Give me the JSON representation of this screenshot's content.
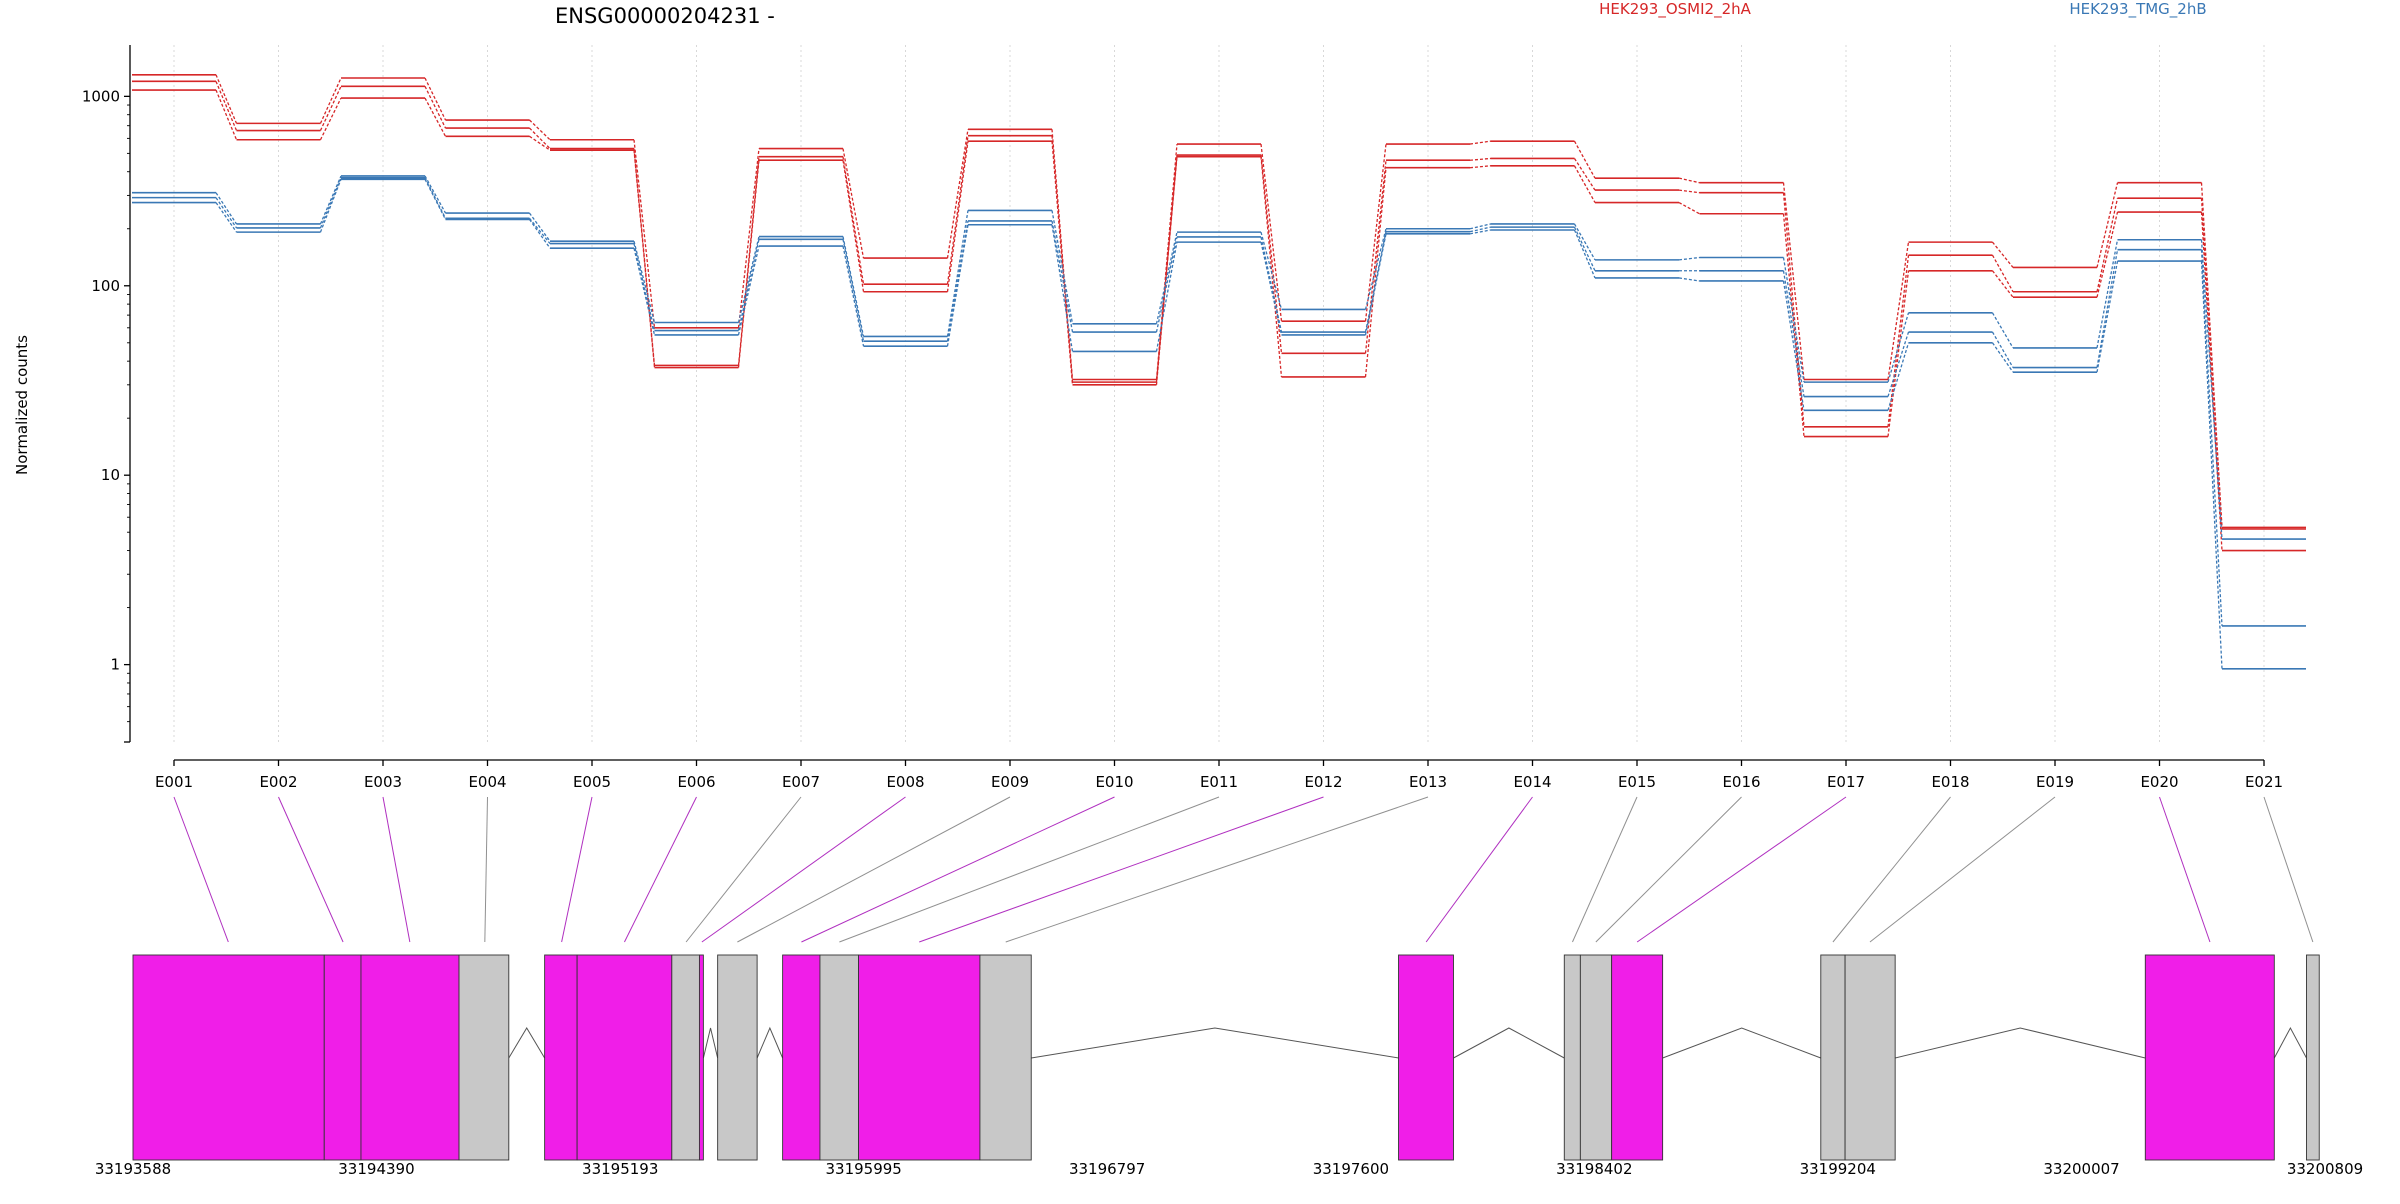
{
  "chart_data": {
    "type": "line",
    "title": "ENSG00000204231 -",
    "ylabel": "Normalized counts",
    "xlabel": "",
    "yscale": "log",
    "ylim": [
      0.4,
      1800
    ],
    "yticks": [
      1,
      10,
      100,
      1000
    ],
    "ytick_labels": [
      "1",
      "10",
      "100",
      "1000"
    ],
    "grid": "vertical dashed lines at each exon",
    "legend": "top, above plot",
    "categories": [
      "E001",
      "E002",
      "E003",
      "E004",
      "E005",
      "E006",
      "E007",
      "E008",
      "E009",
      "E010",
      "E011",
      "E012",
      "E013",
      "E014",
      "E015",
      "E016",
      "E017",
      "E018",
      "E019",
      "E020",
      "E021"
    ],
    "series": [
      {
        "name": "HEK293_OSMI2_2hA",
        "color": "#d62728",
        "values": [
          1300,
          720,
          1250,
          750,
          590,
          60,
          530,
          140,
          670,
          32,
          560,
          65,
          560,
          580,
          370,
          350,
          32,
          170,
          125,
          350,
          5.3
        ]
      },
      {
        "color": "#d62728",
        "values": [
          1200,
          660,
          1130,
          680,
          530,
          38,
          480,
          102,
          620,
          31,
          490,
          44,
          460,
          470,
          320,
          310,
          18,
          145,
          93,
          290,
          5.2
        ]
      },
      {
        "color": "#d62728",
        "values": [
          1080,
          590,
          980,
          615,
          520,
          37,
          460,
          93,
          580,
          30,
          480,
          33,
          420,
          430,
          275,
          240,
          16,
          120,
          87,
          245,
          4.0
        ]
      },
      {
        "name": "HEK293_TMG_2hB",
        "color": "#3a78b5",
        "values": [
          310,
          212,
          380,
          242,
          172,
          64,
          182,
          54,
          250,
          63,
          192,
          75,
          200,
          212,
          137,
          141,
          31,
          72,
          47,
          175,
          4.6
        ]
      },
      {
        "color": "#3a78b5",
        "values": [
          292,
          202,
          372,
          227,
          167,
          58,
          176,
          51,
          220,
          57,
          181,
          57,
          193,
          204,
          120,
          120,
          26,
          57,
          37,
          155,
          1.6
        ]
      },
      {
        "color": "#3a78b5",
        "values": [
          275,
          192,
          365,
          224,
          158,
          55,
          162,
          48,
          210,
          45,
          170,
          55,
          188,
          197,
          110,
          106,
          22,
          50,
          35,
          135,
          0.95
        ]
      }
    ],
    "gene_model": {
      "coordinate_labels": [
        "33193588",
        "33194390",
        "33195193",
        "33195995",
        "33196797",
        "33197600",
        "33198402",
        "33199204",
        "33200007",
        "33200809"
      ],
      "coordinate_values": [
        33193588,
        33194390,
        33195193,
        33195995,
        33196797,
        33197600,
        33198402,
        33199204,
        33200007,
        33200809
      ],
      "colors": {
        "significant": "#f01ee8",
        "normal": "#c8c8c8",
        "intron": "#555555"
      },
      "segments": [
        {
          "start": 33193588,
          "end": 33194218,
          "significant": true
        },
        {
          "start": 33194218,
          "end": 33194339,
          "significant": true
        },
        {
          "start": 33194339,
          "end": 33194662,
          "significant": true
        },
        {
          "start": 33194662,
          "end": 33194826,
          "significant": false
        },
        {
          "start": 33194944,
          "end": 33195051,
          "significant": true
        },
        {
          "start": 33195051,
          "end": 33195363,
          "significant": true
        },
        {
          "start": 33195363,
          "end": 33195454,
          "significant": false
        },
        {
          "start": 33195454,
          "end": 33195467,
          "significant": true
        },
        {
          "start": 33195514,
          "end": 33195644,
          "significant": false
        },
        {
          "start": 33195728,
          "end": 33195851,
          "significant": true
        },
        {
          "start": 33195851,
          "end": 33195978,
          "significant": false
        },
        {
          "start": 33195978,
          "end": 33196378,
          "significant": true
        },
        {
          "start": 33196378,
          "end": 33196547,
          "significant": false
        },
        {
          "start": 33197757,
          "end": 33197938,
          "significant": true
        },
        {
          "start": 33198303,
          "end": 33198356,
          "significant": false
        },
        {
          "start": 33198356,
          "end": 33198459,
          "significant": false
        },
        {
          "start": 33198459,
          "end": 33198627,
          "significant": true
        },
        {
          "start": 33199148,
          "end": 33199228,
          "significant": false
        },
        {
          "start": 33199228,
          "end": 33199393,
          "significant": false
        },
        {
          "start": 33200217,
          "end": 33200642,
          "significant": true
        },
        {
          "start": 33200748,
          "end": 33200790,
          "significant": false
        }
      ],
      "connector_targets": [
        33193902,
        33194280,
        33194500,
        33194747,
        33195000,
        33195207,
        33195410,
        33195462,
        33195579,
        33195790,
        33195915,
        33196178,
        33196463,
        33197848,
        33198330,
        33198407,
        33198543,
        33199188,
        33199310,
        33200430,
        33200769
      ]
    }
  }
}
